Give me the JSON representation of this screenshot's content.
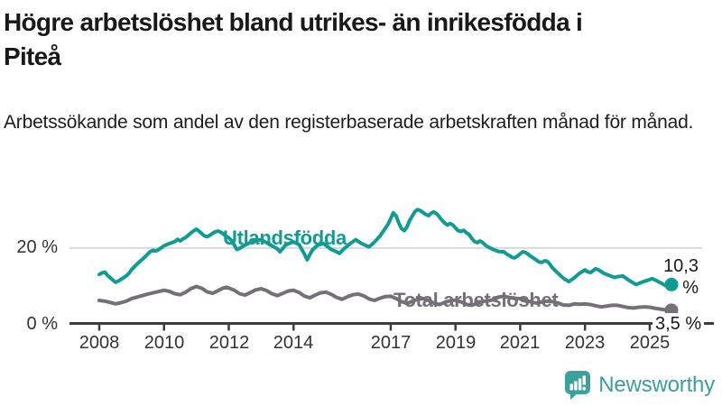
{
  "header": {
    "title_line1": "Högre arbetslöshet bland utrikes- än inrikesfödda i",
    "title_line2": "Piteå",
    "subtitle": "Arbetssökande som andel av den registerbaserade arbetskraften månad för månad."
  },
  "chart_data": {
    "type": "line",
    "title": "Högre arbetslöshet bland utrikes- än inrikesfödda i Piteå",
    "subtitle": "Arbetssökande som andel av den registerbaserade arbetskraften månad för månad.",
    "unit": "%",
    "x_axis": {
      "ticks": [
        "2008",
        "2010",
        "2012",
        "2014",
        "2017",
        "2019",
        "2021",
        "2023",
        "2025"
      ],
      "tick_years": [
        2008,
        2010,
        2012,
        2014,
        2017,
        2019,
        2021,
        2023,
        2025
      ],
      "range": [
        2007.1,
        2026.9
      ]
    },
    "y_axis": {
      "ticks": [
        {
          "value": 0,
          "label": "0 %"
        },
        {
          "value": 20,
          "label": "20 %"
        }
      ],
      "range": [
        0,
        32
      ],
      "gridline_at": 20
    },
    "style": {
      "grid_color": "#d9d9d9",
      "axis_color": "#3d3d3d",
      "tick_label_color": "#333333",
      "background": "#ffffff"
    },
    "legend_position": "inline-labels",
    "series": [
      {
        "name": "Utlandsfödda",
        "color": "#109c92",
        "end_label": "10,3 %",
        "end_value": 10.3,
        "points": [
          [
            2008.0,
            13.0
          ],
          [
            2008.08,
            13.4
          ],
          [
            2008.17,
            13.6
          ],
          [
            2008.25,
            12.8
          ],
          [
            2008.33,
            12.2
          ],
          [
            2008.42,
            11.5
          ],
          [
            2008.5,
            10.9
          ],
          [
            2008.58,
            11.2
          ],
          [
            2008.67,
            11.7
          ],
          [
            2008.75,
            12.1
          ],
          [
            2008.83,
            12.6
          ],
          [
            2008.92,
            13.3
          ],
          [
            2009.0,
            14.3
          ],
          [
            2009.17,
            15.8
          ],
          [
            2009.33,
            17.0
          ],
          [
            2009.5,
            18.4
          ],
          [
            2009.58,
            19.1
          ],
          [
            2009.67,
            19.4
          ],
          [
            2009.75,
            19.2
          ],
          [
            2009.83,
            19.6
          ],
          [
            2009.92,
            20.1
          ],
          [
            2010.0,
            20.6
          ],
          [
            2010.17,
            21.2
          ],
          [
            2010.33,
            21.7
          ],
          [
            2010.42,
            22.3
          ],
          [
            2010.5,
            21.9
          ],
          [
            2010.58,
            22.4
          ],
          [
            2010.67,
            22.8
          ],
          [
            2010.75,
            23.4
          ],
          [
            2010.83,
            24.0
          ],
          [
            2010.92,
            24.6
          ],
          [
            2011.0,
            25.0
          ],
          [
            2011.08,
            24.5
          ],
          [
            2011.17,
            23.8
          ],
          [
            2011.25,
            23.2
          ],
          [
            2011.33,
            23.0
          ],
          [
            2011.42,
            23.4
          ],
          [
            2011.5,
            23.9
          ],
          [
            2011.58,
            24.3
          ],
          [
            2011.67,
            24.5
          ],
          [
            2011.75,
            24.2
          ],
          [
            2011.83,
            23.7
          ],
          [
            2011.92,
            23.1
          ],
          [
            2012.0,
            22.7
          ],
          [
            2012.08,
            22.0
          ],
          [
            2012.17,
            20.8
          ],
          [
            2012.25,
            19.6
          ],
          [
            2012.33,
            19.9
          ],
          [
            2012.42,
            20.4
          ],
          [
            2012.58,
            21.1
          ],
          [
            2012.75,
            21.8
          ],
          [
            2012.92,
            22.1
          ],
          [
            2013.0,
            22.2
          ],
          [
            2013.17,
            21.4
          ],
          [
            2013.33,
            20.6
          ],
          [
            2013.5,
            19.8
          ],
          [
            2013.58,
            19.0
          ],
          [
            2013.67,
            19.9
          ],
          [
            2013.75,
            20.8
          ],
          [
            2013.92,
            21.4
          ],
          [
            2014.0,
            21.6
          ],
          [
            2014.17,
            20.9
          ],
          [
            2014.33,
            18.5
          ],
          [
            2014.42,
            16.9
          ],
          [
            2014.5,
            18.2
          ],
          [
            2014.58,
            19.5
          ],
          [
            2014.75,
            20.8
          ],
          [
            2014.92,
            21.2
          ],
          [
            2015.0,
            20.7
          ],
          [
            2015.17,
            19.6
          ],
          [
            2015.33,
            19.0
          ],
          [
            2015.42,
            18.6
          ],
          [
            2015.58,
            20.0
          ],
          [
            2015.75,
            21.2
          ],
          [
            2015.92,
            22.2
          ],
          [
            2016.08,
            21.3
          ],
          [
            2016.25,
            20.6
          ],
          [
            2016.33,
            20.3
          ],
          [
            2016.5,
            21.6
          ],
          [
            2016.67,
            23.2
          ],
          [
            2016.83,
            25.2
          ],
          [
            2016.92,
            26.3
          ],
          [
            2017.0,
            27.8
          ],
          [
            2017.08,
            29.3
          ],
          [
            2017.17,
            28.5
          ],
          [
            2017.25,
            26.6
          ],
          [
            2017.33,
            25.2
          ],
          [
            2017.42,
            24.6
          ],
          [
            2017.5,
            25.6
          ],
          [
            2017.58,
            27.2
          ],
          [
            2017.67,
            28.6
          ],
          [
            2017.75,
            29.7
          ],
          [
            2017.83,
            30.2
          ],
          [
            2017.92,
            29.9
          ],
          [
            2018.0,
            29.4
          ],
          [
            2018.08,
            28.9
          ],
          [
            2018.17,
            28.6
          ],
          [
            2018.25,
            29.2
          ],
          [
            2018.33,
            29.6
          ],
          [
            2018.42,
            29.1
          ],
          [
            2018.5,
            28.3
          ],
          [
            2018.58,
            27.4
          ],
          [
            2018.67,
            26.6
          ],
          [
            2018.75,
            26.1
          ],
          [
            2018.83,
            26.5
          ],
          [
            2018.92,
            26.1
          ],
          [
            2019.0,
            25.3
          ],
          [
            2019.08,
            24.6
          ],
          [
            2019.17,
            24.4
          ],
          [
            2019.25,
            24.7
          ],
          [
            2019.33,
            24.1
          ],
          [
            2019.42,
            23.6
          ],
          [
            2019.5,
            22.6
          ],
          [
            2019.58,
            21.8
          ],
          [
            2019.67,
            21.4
          ],
          [
            2019.75,
            21.9
          ],
          [
            2019.83,
            21.5
          ],
          [
            2019.92,
            20.8
          ],
          [
            2020.0,
            20.3
          ],
          [
            2020.17,
            19.6
          ],
          [
            2020.33,
            19.1
          ],
          [
            2020.5,
            19.0
          ],
          [
            2020.58,
            18.4
          ],
          [
            2020.67,
            18.0
          ],
          [
            2020.75,
            17.5
          ],
          [
            2020.83,
            17.4
          ],
          [
            2020.92,
            17.9
          ],
          [
            2021.0,
            18.5
          ],
          [
            2021.08,
            19.0
          ],
          [
            2021.17,
            18.8
          ],
          [
            2021.33,
            17.8
          ],
          [
            2021.5,
            16.8
          ],
          [
            2021.58,
            16.3
          ],
          [
            2021.67,
            16.2
          ],
          [
            2021.75,
            16.6
          ],
          [
            2021.83,
            16.5
          ],
          [
            2021.92,
            15.7
          ],
          [
            2022.0,
            14.7
          ],
          [
            2022.17,
            13.3
          ],
          [
            2022.33,
            12.0
          ],
          [
            2022.5,
            11.1
          ],
          [
            2022.67,
            12.1
          ],
          [
            2022.83,
            13.3
          ],
          [
            2023.0,
            14.2
          ],
          [
            2023.08,
            13.7
          ],
          [
            2023.17,
            13.5
          ],
          [
            2023.33,
            14.5
          ],
          [
            2023.42,
            14.2
          ],
          [
            2023.58,
            13.3
          ],
          [
            2023.75,
            12.7
          ],
          [
            2023.92,
            12.2
          ],
          [
            2024.0,
            12.4
          ],
          [
            2024.17,
            12.6
          ],
          [
            2024.33,
            11.6
          ],
          [
            2024.5,
            10.7
          ],
          [
            2024.58,
            10.3
          ],
          [
            2024.75,
            10.9
          ],
          [
            2024.92,
            11.4
          ],
          [
            2025.08,
            11.9
          ],
          [
            2025.17,
            11.5
          ],
          [
            2025.33,
            10.8
          ],
          [
            2025.5,
            10.0
          ],
          [
            2025.58,
            10.1
          ],
          [
            2025.67,
            10.3
          ]
        ]
      },
      {
        "name": "Total arbetslöshet",
        "color": "#757077",
        "end_label": "3,5 %",
        "end_value": 3.5,
        "points": [
          [
            2008.0,
            6.1
          ],
          [
            2008.17,
            5.9
          ],
          [
            2008.33,
            5.6
          ],
          [
            2008.5,
            5.2
          ],
          [
            2008.67,
            5.5
          ],
          [
            2008.83,
            5.9
          ],
          [
            2009.0,
            6.6
          ],
          [
            2009.25,
            7.2
          ],
          [
            2009.5,
            7.8
          ],
          [
            2009.75,
            8.3
          ],
          [
            2010.0,
            8.8
          ],
          [
            2010.17,
            8.5
          ],
          [
            2010.33,
            7.9
          ],
          [
            2010.5,
            7.6
          ],
          [
            2010.67,
            8.3
          ],
          [
            2010.83,
            9.2
          ],
          [
            2011.0,
            9.8
          ],
          [
            2011.17,
            9.3
          ],
          [
            2011.33,
            8.4
          ],
          [
            2011.5,
            8.0
          ],
          [
            2011.67,
            8.7
          ],
          [
            2011.83,
            9.4
          ],
          [
            2011.92,
            9.6
          ],
          [
            2012.0,
            9.4
          ],
          [
            2012.17,
            8.8
          ],
          [
            2012.33,
            7.9
          ],
          [
            2012.5,
            7.5
          ],
          [
            2012.67,
            8.2
          ],
          [
            2012.83,
            8.9
          ],
          [
            2013.0,
            9.2
          ],
          [
            2013.17,
            8.7
          ],
          [
            2013.33,
            7.9
          ],
          [
            2013.5,
            7.4
          ],
          [
            2013.67,
            8.0
          ],
          [
            2013.83,
            8.6
          ],
          [
            2014.0,
            8.8
          ],
          [
            2014.17,
            8.2
          ],
          [
            2014.33,
            7.3
          ],
          [
            2014.5,
            6.8
          ],
          [
            2014.67,
            7.5
          ],
          [
            2014.83,
            8.1
          ],
          [
            2015.0,
            8.3
          ],
          [
            2015.17,
            7.7
          ],
          [
            2015.33,
            6.9
          ],
          [
            2015.5,
            6.4
          ],
          [
            2015.67,
            7.1
          ],
          [
            2015.83,
            7.6
          ],
          [
            2016.0,
            7.8
          ],
          [
            2016.17,
            7.3
          ],
          [
            2016.33,
            6.5
          ],
          [
            2016.5,
            6.1
          ],
          [
            2016.67,
            6.7
          ],
          [
            2016.83,
            7.1
          ],
          [
            2017.0,
            7.2
          ],
          [
            2017.17,
            6.6
          ],
          [
            2017.33,
            5.8
          ],
          [
            2017.5,
            5.3
          ],
          [
            2017.67,
            5.9
          ],
          [
            2017.83,
            6.4
          ],
          [
            2018.0,
            6.6
          ],
          [
            2018.17,
            6.1
          ],
          [
            2018.33,
            5.4
          ],
          [
            2018.5,
            5.0
          ],
          [
            2018.67,
            5.6
          ],
          [
            2018.83,
            6.0
          ],
          [
            2019.0,
            6.2
          ],
          [
            2019.17,
            5.7
          ],
          [
            2019.33,
            5.1
          ],
          [
            2019.5,
            4.8
          ],
          [
            2019.67,
            5.3
          ],
          [
            2019.83,
            5.8
          ],
          [
            2020.0,
            6.0
          ],
          [
            2020.17,
            6.3
          ],
          [
            2020.33,
            7.0
          ],
          [
            2020.5,
            7.2
          ],
          [
            2020.67,
            6.9
          ],
          [
            2020.83,
            6.6
          ],
          [
            2021.0,
            6.6
          ],
          [
            2021.17,
            6.2
          ],
          [
            2021.33,
            5.7
          ],
          [
            2021.5,
            5.4
          ],
          [
            2021.67,
            5.7
          ],
          [
            2021.83,
            5.9
          ],
          [
            2022.0,
            5.8
          ],
          [
            2022.17,
            5.4
          ],
          [
            2022.33,
            4.9
          ],
          [
            2022.5,
            4.8
          ],
          [
            2022.67,
            5.2
          ],
          [
            2022.83,
            5.1
          ],
          [
            2023.0,
            5.2
          ],
          [
            2023.17,
            5.0
          ],
          [
            2023.33,
            4.7
          ],
          [
            2023.5,
            4.4
          ],
          [
            2023.67,
            4.6
          ],
          [
            2023.83,
            4.8
          ],
          [
            2024.0,
            4.8
          ],
          [
            2024.17,
            4.5
          ],
          [
            2024.33,
            4.2
          ],
          [
            2024.5,
            4.1
          ],
          [
            2024.67,
            4.3
          ],
          [
            2024.83,
            4.4
          ],
          [
            2025.0,
            4.3
          ],
          [
            2025.17,
            4.0
          ],
          [
            2025.33,
            3.8
          ],
          [
            2025.5,
            3.6
          ],
          [
            2025.67,
            3.5
          ]
        ]
      }
    ]
  },
  "footer": {
    "brand": "Newsworthy",
    "logo_icon": "bar-chart-speech-bubble-icon",
    "brand_color": "#3b9f9a"
  }
}
